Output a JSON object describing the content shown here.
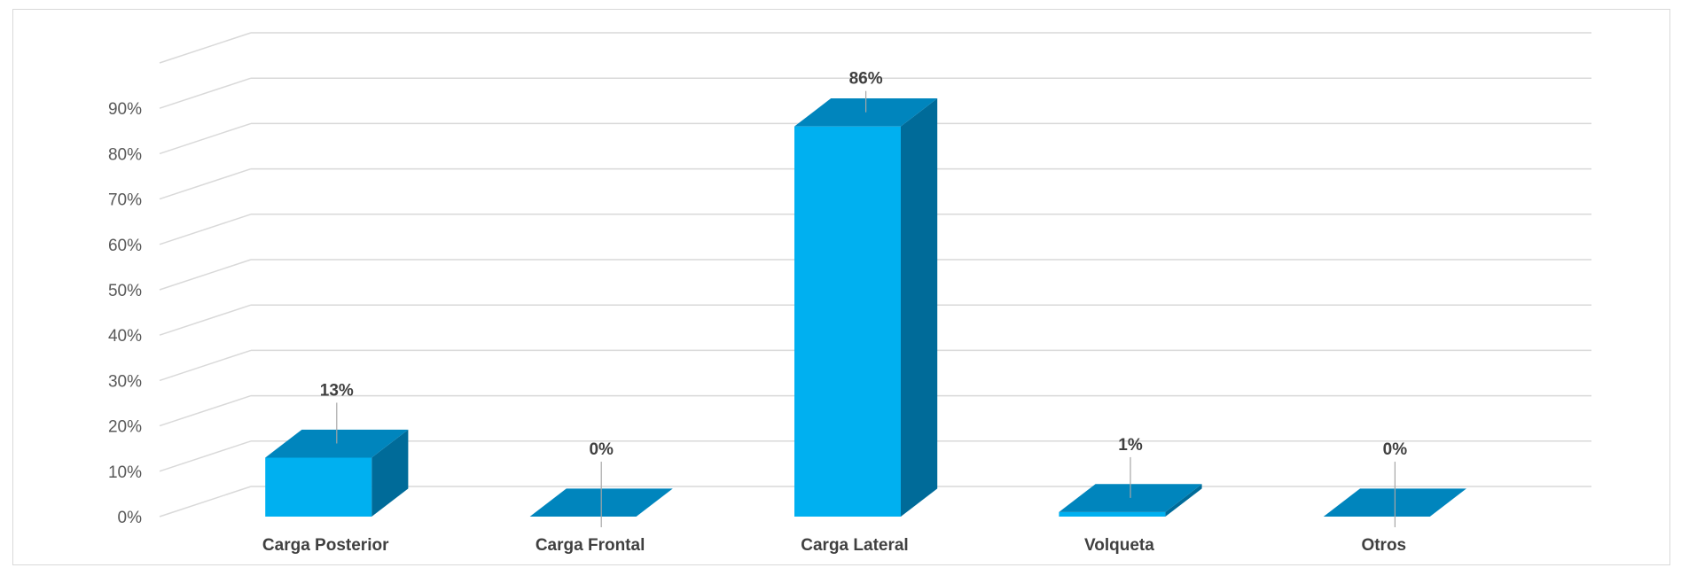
{
  "chart_data": {
    "type": "bar",
    "style": "3d-column",
    "categories": [
      "Carga Posterior",
      "Carga Frontal",
      "Carga Lateral",
      "Volqueta",
      "Otros"
    ],
    "values": [
      13,
      0,
      86,
      1,
      0
    ],
    "data_labels": [
      "13%",
      "0%",
      "86%",
      "1%",
      "0%"
    ],
    "ylim": [
      0,
      100
    ],
    "y_ticks": [
      0,
      10,
      20,
      30,
      40,
      50,
      60,
      70,
      80,
      90
    ],
    "y_tick_labels": [
      "0%",
      "10%",
      "20%",
      "30%",
      "40%",
      "50%",
      "60%",
      "70%",
      "80%",
      "90%"
    ],
    "grid": true,
    "legend": "none",
    "colors": {
      "front": "#00b0f0",
      "top": "#0085bd",
      "side": "#006b99",
      "grid": "#d9d9d9",
      "leader": "#a6a6a6"
    }
  }
}
